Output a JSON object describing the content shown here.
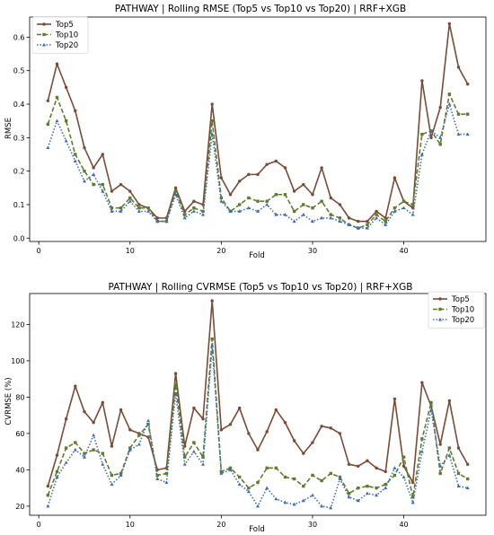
{
  "chart_data": [
    {
      "type": "line",
      "title": "PATHWAY | Rolling RMSE (Top5 vs Top10 vs Top20) | RRF+XGB",
      "xlabel": "Fold",
      "ylabel": "RMSE",
      "xlim": [
        -1,
        49
      ],
      "ylim": [
        -0.01,
        0.66
      ],
      "xticks": [
        0,
        10,
        20,
        30,
        40
      ],
      "yticks": [
        0.0,
        0.1,
        0.2,
        0.3,
        0.4,
        0.5,
        0.6
      ],
      "ytick_labels": [
        "0.0",
        "0.1",
        "0.2",
        "0.3",
        "0.4",
        "0.5",
        "0.6"
      ],
      "xtick_labels": [
        "0",
        "10",
        "20",
        "30",
        "40"
      ],
      "legend_position": "top-left",
      "x": [
        1,
        2,
        3,
        4,
        5,
        6,
        7,
        8,
        9,
        10,
        11,
        12,
        13,
        14,
        15,
        16,
        17,
        18,
        19,
        20,
        21,
        22,
        23,
        24,
        25,
        26,
        27,
        28,
        29,
        30,
        31,
        32,
        33,
        34,
        35,
        36,
        37,
        38,
        39,
        40,
        41,
        42,
        43,
        44,
        45,
        46,
        47
      ],
      "series": [
        {
          "name": "Top5",
          "color": "#7b4a36",
          "dash": "solid",
          "marker": "circle",
          "values": [
            0.41,
            0.52,
            0.45,
            0.38,
            0.27,
            0.21,
            0.25,
            0.14,
            0.16,
            0.14,
            0.1,
            0.09,
            0.06,
            0.06,
            0.15,
            0.08,
            0.11,
            0.1,
            0.4,
            0.18,
            0.13,
            0.17,
            0.19,
            0.19,
            0.22,
            0.23,
            0.21,
            0.14,
            0.16,
            0.13,
            0.21,
            0.12,
            0.1,
            0.06,
            0.05,
            0.05,
            0.08,
            0.06,
            0.18,
            0.11,
            0.09,
            0.47,
            0.3,
            0.39,
            0.64,
            0.51,
            0.46
          ]
        },
        {
          "name": "Top10",
          "color": "#5f7c2e",
          "dash": "dashed",
          "marker": "square",
          "values": [
            0.34,
            0.42,
            0.35,
            0.25,
            0.2,
            0.16,
            0.16,
            0.09,
            0.09,
            0.12,
            0.09,
            0.09,
            0.05,
            0.05,
            0.14,
            0.07,
            0.09,
            0.08,
            0.35,
            0.12,
            0.08,
            0.1,
            0.12,
            0.11,
            0.11,
            0.13,
            0.13,
            0.08,
            0.1,
            0.09,
            0.11,
            0.07,
            0.06,
            0.04,
            0.03,
            0.04,
            0.07,
            0.05,
            0.09,
            0.11,
            0.1,
            0.31,
            0.32,
            0.28,
            0.43,
            0.37,
            0.37
          ]
        },
        {
          "name": "Top20",
          "color": "#3f6db0",
          "dash": "dotted",
          "marker": "triangle",
          "values": [
            0.27,
            0.35,
            0.29,
            0.23,
            0.17,
            0.19,
            0.14,
            0.08,
            0.08,
            0.11,
            0.08,
            0.08,
            0.05,
            0.05,
            0.13,
            0.06,
            0.08,
            0.07,
            0.31,
            0.11,
            0.08,
            0.08,
            0.09,
            0.08,
            0.1,
            0.07,
            0.07,
            0.05,
            0.07,
            0.05,
            0.06,
            0.06,
            0.05,
            0.04,
            0.03,
            0.03,
            0.06,
            0.04,
            0.08,
            0.09,
            0.07,
            0.25,
            0.32,
            0.3,
            0.4,
            0.31,
            0.31
          ]
        }
      ]
    },
    {
      "type": "line",
      "title": "PATHWAY | Rolling CVRMSE (Top5 vs Top10 vs Top20) | RRF+XGB",
      "xlabel": "Fold",
      "ylabel": "CVRMSE (%)",
      "xlim": [
        -1,
        49
      ],
      "ylim": [
        15,
        137
      ],
      "xticks": [
        0,
        10,
        20,
        30,
        40
      ],
      "yticks": [
        20,
        40,
        60,
        80,
        100,
        120
      ],
      "ytick_labels": [
        "20",
        "40",
        "60",
        "80",
        "100",
        "120"
      ],
      "xtick_labels": [
        "0",
        "10",
        "20",
        "30",
        "40"
      ],
      "legend_position": "top-right",
      "x": [
        1,
        2,
        3,
        4,
        5,
        6,
        7,
        8,
        9,
        10,
        11,
        12,
        13,
        14,
        15,
        16,
        17,
        18,
        19,
        20,
        21,
        22,
        23,
        24,
        25,
        26,
        27,
        28,
        29,
        30,
        31,
        32,
        33,
        34,
        35,
        36,
        37,
        38,
        39,
        40,
        41,
        42,
        43,
        44,
        45,
        46,
        47
      ],
      "series": [
        {
          "name": "Top5",
          "color": "#7b4a36",
          "dash": "solid",
          "marker": "circle",
          "values": [
            31,
            48,
            68,
            86,
            72,
            66,
            77,
            53,
            73,
            62,
            60,
            58,
            40,
            41,
            93,
            53,
            74,
            68,
            133,
            62,
            65,
            74,
            60,
            51,
            61,
            73,
            66,
            56,
            49,
            55,
            64,
            63,
            60,
            43,
            42,
            45,
            41,
            39,
            79,
            42,
            33,
            88,
            75,
            54,
            78,
            52,
            43
          ]
        },
        {
          "name": "Top10",
          "color": "#5f7c2e",
          "dash": "dashed",
          "marker": "square",
          "values": [
            26,
            39,
            52,
            55,
            49,
            51,
            49,
            37,
            38,
            52,
            59,
            65,
            37,
            38,
            87,
            47,
            55,
            47,
            112,
            39,
            41,
            36,
            30,
            33,
            41,
            41,
            36,
            35,
            31,
            37,
            34,
            38,
            36,
            27,
            30,
            31,
            30,
            32,
            37,
            47,
            25,
            57,
            77,
            38,
            52,
            38,
            35
          ]
        },
        {
          "name": "Top20",
          "color": "#3f6db0",
          "dash": "dotted",
          "marker": "triangle",
          "values": [
            20,
            36,
            44,
            51,
            47,
            59,
            43,
            32,
            37,
            51,
            54,
            67,
            35,
            33,
            82,
            43,
            50,
            43,
            108,
            38,
            40,
            32,
            28,
            20,
            30,
            24,
            22,
            21,
            23,
            26,
            20,
            19,
            35,
            25,
            23,
            27,
            26,
            30,
            41,
            36,
            22,
            50,
            73,
            42,
            48,
            31,
            30
          ]
        }
      ]
    }
  ]
}
